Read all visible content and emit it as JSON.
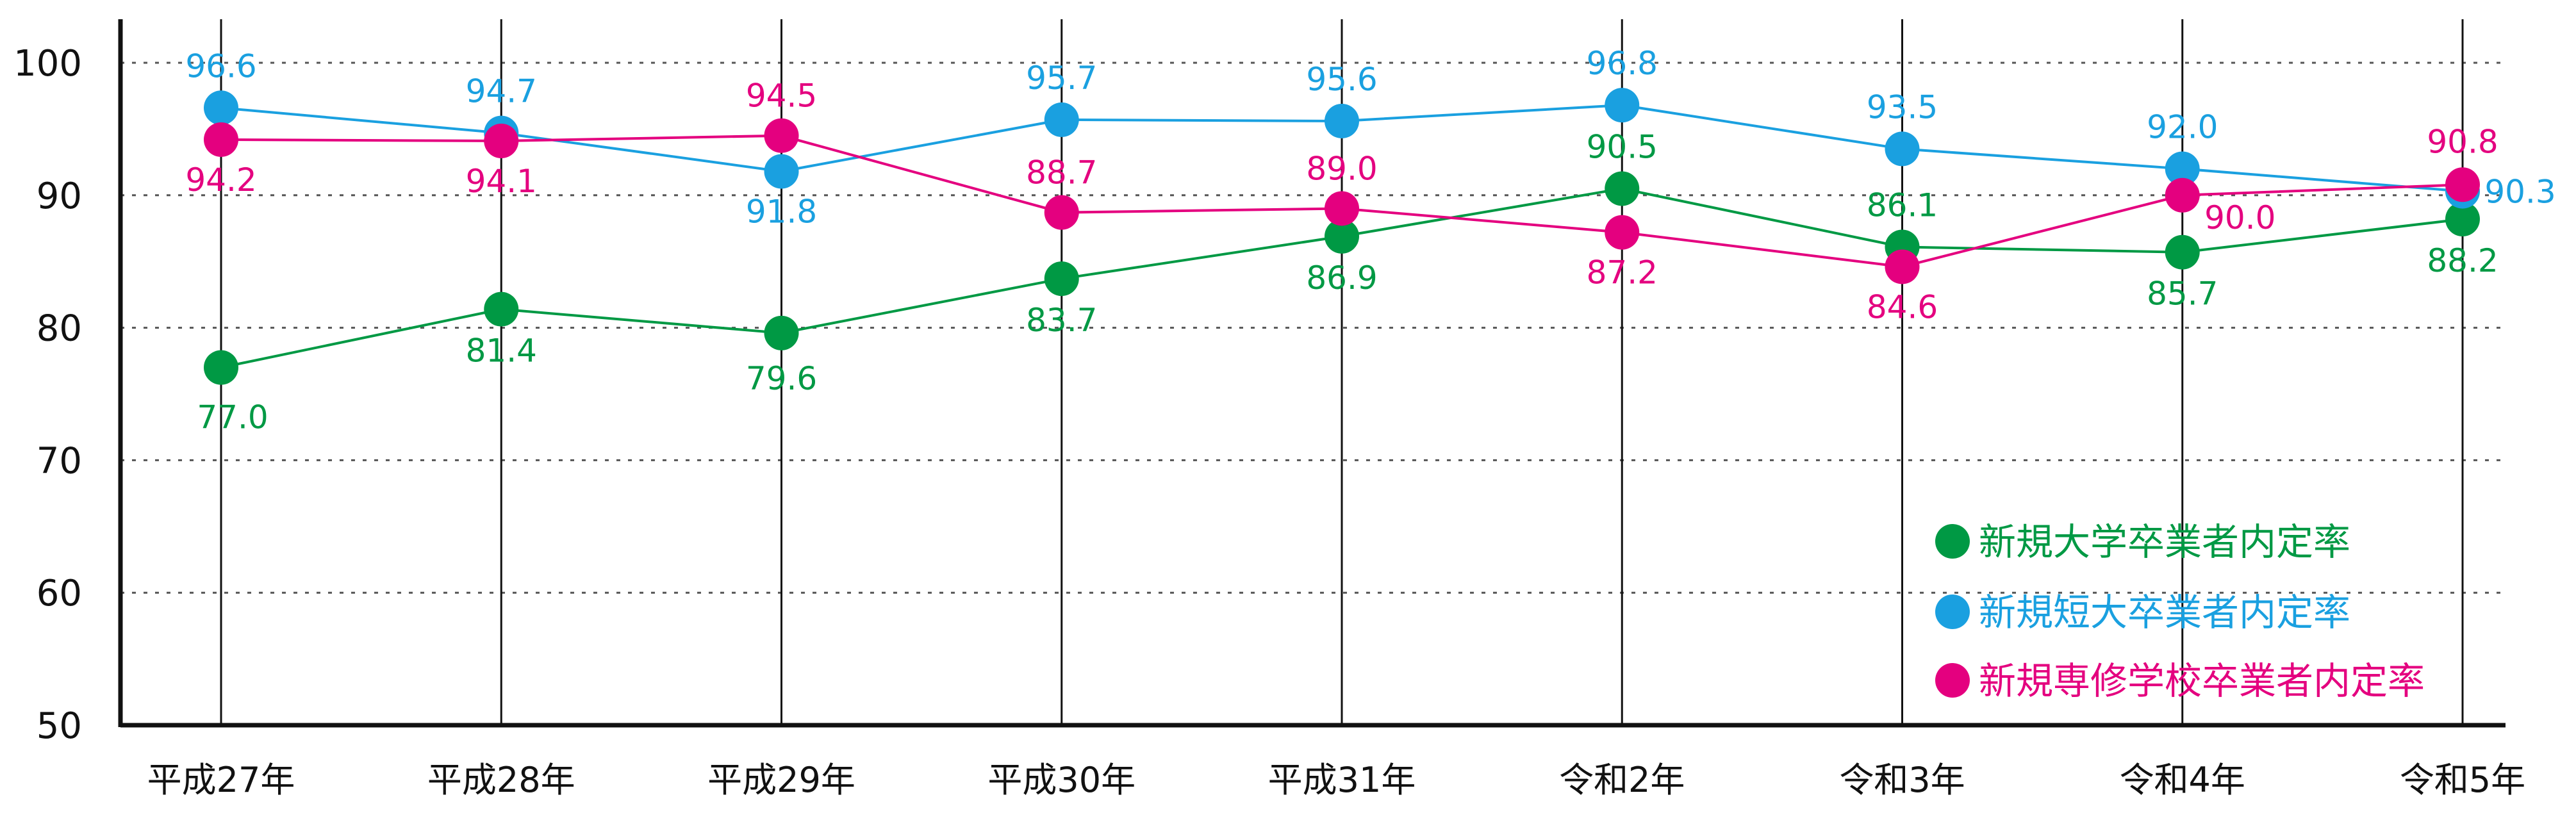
{
  "chart_data": {
    "type": "line",
    "categories": [
      "平成27年",
      "平成28年",
      "平成29年",
      "平成30年",
      "平成31年",
      "令和2年",
      "令和3年",
      "令和4年",
      "令和5年"
    ],
    "ylim": [
      50,
      100
    ],
    "yticks": [
      50,
      60,
      70,
      80,
      90,
      100
    ],
    "grid": true,
    "legend_position": "bottom-right",
    "series": [
      {
        "name": "新規大学卒業者内定率",
        "color": "#009944",
        "values": [
          77.0,
          81.4,
          79.6,
          83.7,
          86.9,
          90.5,
          86.1,
          85.7,
          88.2
        ],
        "labels": [
          "77.0",
          "81.4",
          "79.6",
          "83.7",
          "86.9",
          "90.5",
          "86.1",
          "85.7",
          "88.2"
        ]
      },
      {
        "name": "新規短大卒業者内定率",
        "color": "#1aa0e0",
        "values": [
          96.6,
          94.7,
          91.8,
          95.7,
          95.6,
          96.8,
          93.5,
          92.0,
          90.3
        ],
        "labels": [
          "96.6",
          "94.7",
          "91.8",
          "95.7",
          "95.6",
          "96.8",
          "93.5",
          "92.0",
          "90.3"
        ]
      },
      {
        "name": "新規専修学校卒業者内定率",
        "color": "#e4007f",
        "values": [
          94.2,
          94.1,
          94.5,
          88.7,
          89.0,
          87.2,
          84.6,
          90.0,
          90.8
        ],
        "labels": [
          "94.2",
          "94.1",
          "94.5",
          "88.7",
          "89.0",
          "87.2",
          "84.6",
          "90.0",
          "90.8"
        ]
      }
    ]
  }
}
